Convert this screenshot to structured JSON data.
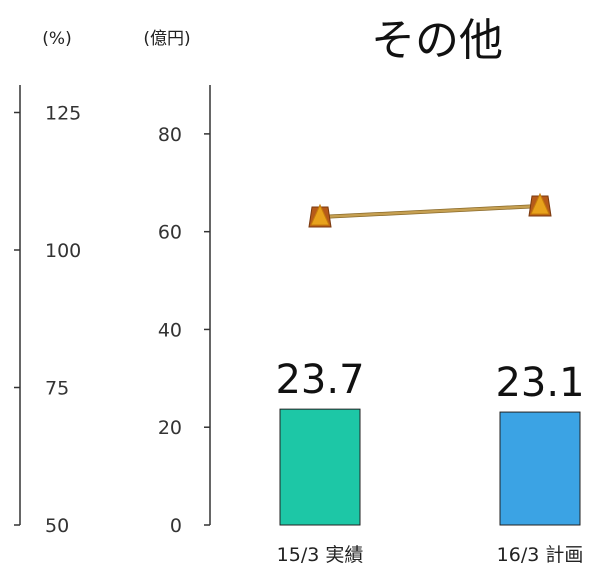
{
  "title": "その他",
  "left_axis_unit": "(%)",
  "right_axis_unit": "(億円)",
  "chart_data": {
    "type": "bar",
    "title": "その他",
    "categories": [
      "15/3 実績",
      "16/3 計画"
    ],
    "series": [
      {
        "type": "bar",
        "axis": "億円",
        "values": [
          23.7,
          23.1
        ],
        "colors": [
          "#1dc7a6",
          "#3ba3e4"
        ]
      },
      {
        "type": "line",
        "axis": "%",
        "values": [
          106,
          108
        ],
        "color": "#c6a052",
        "marker_color": "#e8a21c"
      }
    ],
    "data_labels": [
      "23.7",
      "23.1"
    ],
    "left_axis": {
      "unit": "(%)",
      "range": [
        50,
        130
      ],
      "ticks": [
        50,
        75,
        100,
        125
      ]
    },
    "right_axis": {
      "unit": "(億円)",
      "range": [
        0,
        90
      ],
      "ticks": [
        0,
        20,
        40,
        60,
        80
      ]
    },
    "grid": false
  }
}
